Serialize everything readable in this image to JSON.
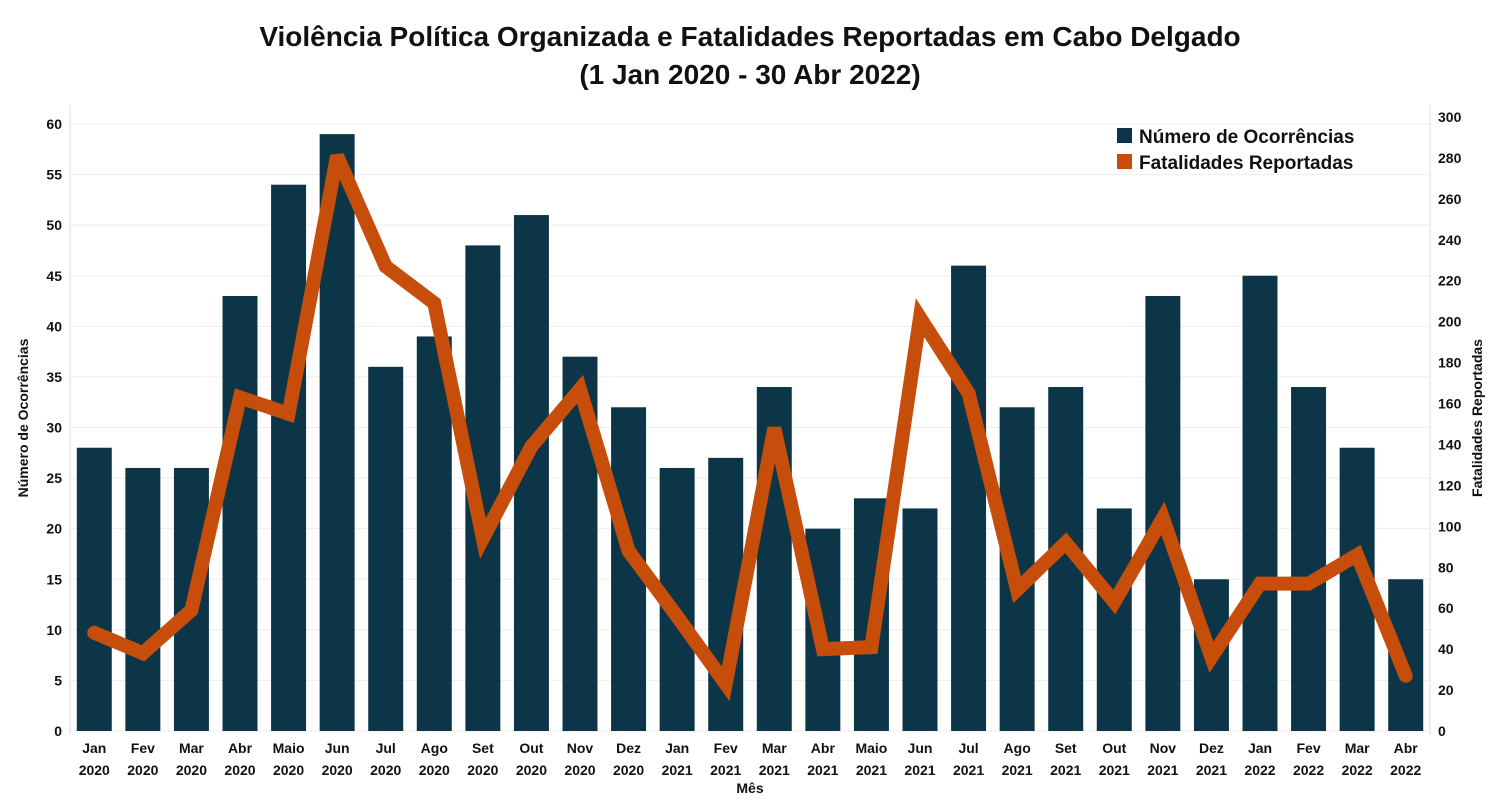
{
  "chart_data": {
    "type": "bar",
    "title": "Violência Política Organizada e Fatalidades Reportadas em Cabo Delgado",
    "subtitle": "(1 Jan 2020 - 30 Abr 2022)",
    "xlabel": "Mês",
    "ylabel": "Número de Ocorrências",
    "y2label": "Fatalidades Reportadas",
    "ylim": [
      0,
      60
    ],
    "y2lim": [
      0,
      300
    ],
    "yticks": [
      0,
      5,
      10,
      15,
      20,
      25,
      30,
      35,
      40,
      45,
      50,
      55,
      60
    ],
    "y2ticks": [
      0,
      20,
      40,
      60,
      80,
      100,
      120,
      140,
      160,
      180,
      200,
      220,
      240,
      260,
      280,
      300
    ],
    "legend_position": "top-right",
    "categories": [
      {
        "month": "Jan",
        "year": "2020"
      },
      {
        "month": "Fev",
        "year": "2020"
      },
      {
        "month": "Mar",
        "year": "2020"
      },
      {
        "month": "Abr",
        "year": "2020"
      },
      {
        "month": "Maio",
        "year": "2020"
      },
      {
        "month": "Jun",
        "year": "2020"
      },
      {
        "month": "Jul",
        "year": "2020"
      },
      {
        "month": "Ago",
        "year": "2020"
      },
      {
        "month": "Set",
        "year": "2020"
      },
      {
        "month": "Out",
        "year": "2020"
      },
      {
        "month": "Nov",
        "year": "2020"
      },
      {
        "month": "Dez",
        "year": "2020"
      },
      {
        "month": "Jan",
        "year": "2021"
      },
      {
        "month": "Fev",
        "year": "2021"
      },
      {
        "month": "Mar",
        "year": "2021"
      },
      {
        "month": "Abr",
        "year": "2021"
      },
      {
        "month": "Maio",
        "year": "2021"
      },
      {
        "month": "Jun",
        "year": "2021"
      },
      {
        "month": "Jul",
        "year": "2021"
      },
      {
        "month": "Ago",
        "year": "2021"
      },
      {
        "month": "Set",
        "year": "2021"
      },
      {
        "month": "Out",
        "year": "2021"
      },
      {
        "month": "Nov",
        "year": "2021"
      },
      {
        "month": "Dez",
        "year": "2021"
      },
      {
        "month": "Jan",
        "year": "2022"
      },
      {
        "month": "Fev",
        "year": "2022"
      },
      {
        "month": "Mar",
        "year": "2022"
      },
      {
        "month": "Abr",
        "year": "2022"
      }
    ],
    "series": [
      {
        "name": "Número de Ocorrências",
        "type": "bar",
        "axis": "left",
        "color": "#0c3547",
        "values": [
          28,
          26,
          26,
          43,
          54,
          59,
          36,
          39,
          48,
          51,
          37,
          32,
          26,
          27,
          34,
          20,
          23,
          22,
          46,
          32,
          34,
          22,
          43,
          15,
          45,
          34,
          28,
          15
        ]
      },
      {
        "name": "Fatalidades Reportadas",
        "type": "line",
        "axis": "right",
        "color": "#c64e0a",
        "values": [
          48,
          38,
          59,
          163,
          155,
          281,
          227,
          209,
          94,
          139,
          167,
          88,
          56,
          23,
          148,
          40,
          41,
          202,
          165,
          69,
          92,
          63,
          104,
          36,
          72,
          72,
          86,
          27
        ]
      }
    ]
  }
}
